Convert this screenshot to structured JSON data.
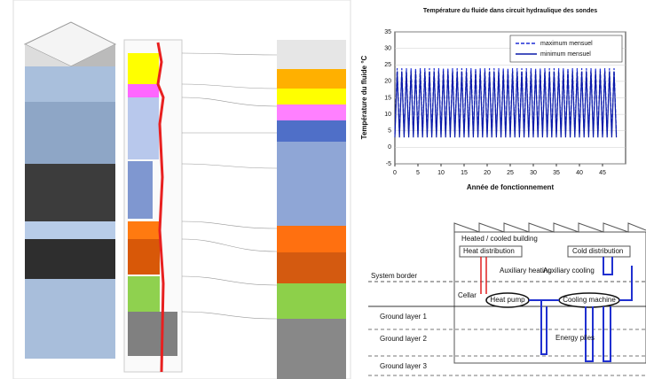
{
  "chart_data": {
    "type": "line",
    "title": "Température du fluide dans circuit hydraulique des sondes",
    "x_label": "Année de fonctionnement",
    "y_label": "Température du fluide °C",
    "x": [
      0,
      0.5,
      1,
      1.5,
      2,
      2.5,
      3,
      3.5,
      4,
      4.5,
      5,
      5.5,
      6,
      6.5,
      7,
      7.5,
      8,
      8.5,
      9,
      9.5,
      10,
      10.5,
      11,
      11.5,
      12,
      12.5,
      13,
      13.5,
      14,
      14.5,
      15,
      15.5,
      16,
      16.5,
      17,
      17.5,
      18,
      18.5,
      19,
      19.5,
      20,
      20.5,
      21,
      21.5,
      22,
      22.5,
      23,
      23.5,
      24,
      24.5,
      25,
      25.5,
      26,
      26.5,
      27,
      27.5,
      28,
      28.5,
      29,
      29.5,
      30,
      30.5,
      31,
      31.5,
      32,
      32.5,
      33,
      33.5,
      34,
      34.5,
      35,
      35.5,
      36,
      36.5,
      37,
      37.5,
      38,
      38.5,
      39,
      39.5,
      40,
      40.5,
      41,
      41.5,
      42,
      42.5,
      43,
      43.5,
      44,
      44.5,
      45,
      45.5,
      46,
      46.5,
      47,
      47.5,
      48
    ],
    "series": [
      {
        "name": "maximum mensuel",
        "color": "#1f2fd6",
        "dash": true,
        "values": [
          4,
          24,
          4,
          24,
          4,
          24,
          4,
          24,
          4,
          24,
          4,
          24,
          4,
          24,
          4,
          24,
          4,
          24,
          4,
          24,
          4,
          24,
          4,
          24,
          4,
          24,
          4,
          24,
          4,
          24,
          4,
          24,
          4,
          24,
          4,
          24,
          4,
          24,
          4,
          24,
          4,
          24,
          4,
          24,
          4,
          24,
          4,
          24,
          4,
          24,
          4,
          24,
          4,
          24,
          4,
          24,
          4,
          24,
          4,
          24,
          4,
          24,
          4,
          24,
          4,
          24,
          4,
          24,
          4,
          24,
          4,
          24,
          4,
          24,
          4,
          24,
          4,
          24,
          4,
          24,
          4,
          24,
          4,
          24,
          4,
          24,
          4,
          24,
          4,
          24,
          4,
          24,
          4,
          24,
          4,
          24,
          4
        ]
      },
      {
        "name": "minimum mensuel",
        "color": "#0a1aa8",
        "dash": false,
        "values": [
          3,
          23,
          3,
          23,
          3,
          23,
          3,
          23,
          3,
          23,
          3,
          23,
          3,
          23,
          3,
          23,
          3,
          23,
          3,
          23,
          3,
          23,
          3,
          23,
          3,
          23,
          3,
          23,
          3,
          23,
          3,
          23,
          3,
          23,
          3,
          23,
          3,
          23,
          3,
          23,
          3,
          23,
          3,
          23,
          3,
          23,
          3,
          23,
          3,
          23,
          3,
          23,
          3,
          23,
          3,
          23,
          3,
          23,
          3,
          23,
          3,
          23,
          3,
          23,
          3,
          23,
          3,
          23,
          3,
          23,
          3,
          23,
          3,
          23,
          3,
          23,
          3,
          23,
          3,
          23,
          3,
          23,
          3,
          23,
          3,
          23,
          3,
          23,
          3,
          23,
          3,
          23,
          3,
          23,
          3,
          23,
          3
        ]
      }
    ],
    "xlim": [
      0,
      50
    ],
    "xticks": [
      0,
      5,
      10,
      15,
      20,
      25,
      30,
      35,
      40,
      45
    ],
    "ylim": [
      -5,
      35
    ],
    "yticks": [
      -5,
      0,
      5,
      10,
      15,
      20,
      25,
      30,
      35
    ],
    "grid": true,
    "legend": "upper right"
  },
  "diagram": {
    "building": "Heated / cooled building",
    "heat_distribution": "Heat distribution",
    "cold_distribution": "Cold distribution",
    "auxiliary_heating": "Auxiliary heating",
    "auxiliary_cooling": "Auxiliary cooling",
    "system_border": "System border",
    "cellar": "Cellar",
    "heat_pump": "Heat pump",
    "cooling_machine": "Cooling machine",
    "ground_layer_1": "Ground layer 1",
    "ground_layer_2": "Ground layer 2",
    "ground_layer_3": "Ground layer 3",
    "energy_piles": "Energy piles"
  }
}
